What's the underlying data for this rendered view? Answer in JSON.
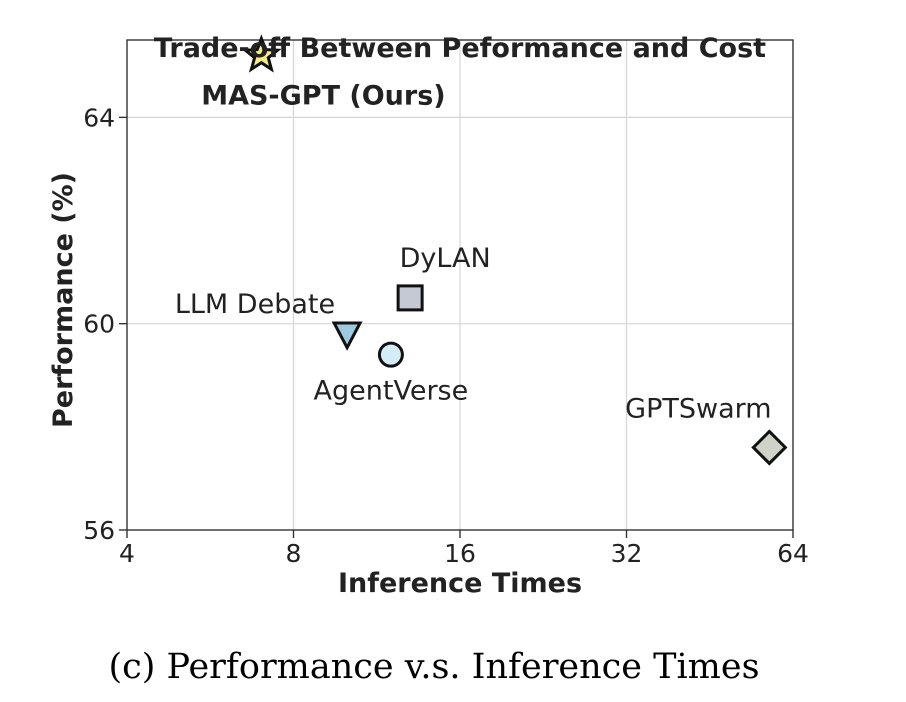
{
  "chart_data": {
    "type": "scatter",
    "title": "Trade-off Between Peformance and Cost",
    "xlabel": "Inference Times",
    "ylabel": "Performance (%)",
    "x_scale": "log2",
    "xlim": [
      4,
      64
    ],
    "ylim": [
      56,
      65.5
    ],
    "x_ticks": [
      4,
      8,
      16,
      32,
      64
    ],
    "y_ticks": [
      56,
      60,
      64
    ],
    "grid": true,
    "points": [
      {
        "name": "MAS-GPT (Ours)",
        "x": 7,
        "y": 65.2,
        "marker": "star",
        "color": "#f5ec82",
        "label_bold": true
      },
      {
        "name": "LLM Debate",
        "x": 10,
        "y": 59.8,
        "marker": "triangle-down",
        "color": "#9ecae1",
        "label_bold": false
      },
      {
        "name": "AgentVerse",
        "x": 12,
        "y": 59.4,
        "marker": "circle",
        "color": "#d3ecf8",
        "label_bold": false
      },
      {
        "name": "DyLAN",
        "x": 13,
        "y": 60.5,
        "marker": "square",
        "color": "#c5c9d3",
        "label_bold": false
      },
      {
        "name": "GPTSwarm",
        "x": 58,
        "y": 57.6,
        "marker": "diamond",
        "color": "#cfd2c8",
        "label_bold": false
      }
    ]
  },
  "caption": "(c) Performance v.s. Inference Times"
}
